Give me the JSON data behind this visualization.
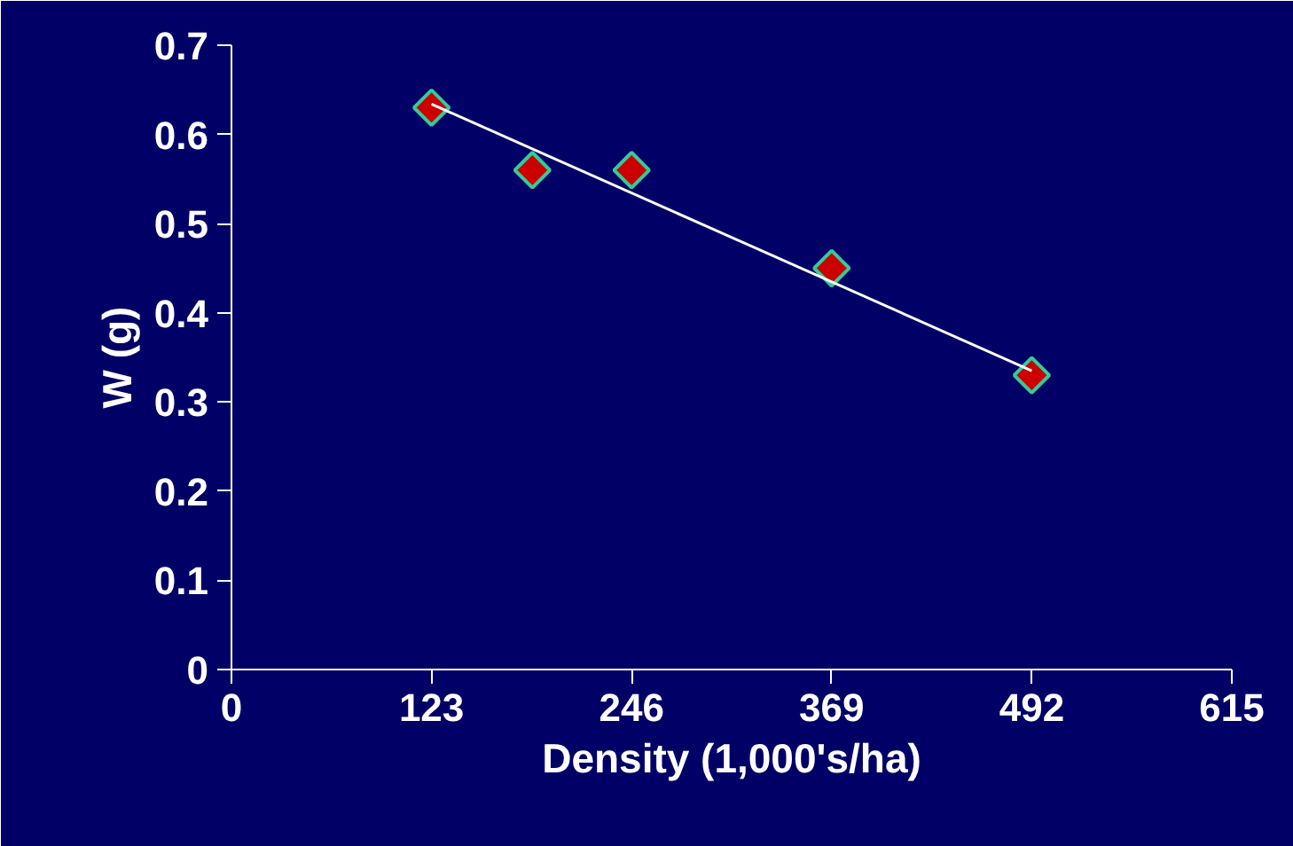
{
  "chart_data": {
    "type": "scatter",
    "xlabel": "Density (1,000's/ha)",
    "ylabel": "W (g)",
    "xlim": [
      0,
      615
    ],
    "ylim": [
      0,
      0.7
    ],
    "xticks": [
      0,
      123,
      246,
      369,
      492,
      615
    ],
    "yticks": [
      0,
      0.1,
      0.2,
      0.3,
      0.4,
      0.5,
      0.6,
      0.7
    ],
    "marker": "diamond",
    "series": [
      {
        "color": "#cc0000",
        "x": [
          123,
          185,
          246,
          369,
          492
        ],
        "values": [
          0.63,
          0.56,
          0.56,
          0.45,
          0.33
        ]
      },
      {
        "type": "line",
        "color": "#ffffff",
        "marker": "none",
        "line_style": "solid",
        "x": [
          123,
          492
        ],
        "values": [
          0.634,
          0.335
        ]
      }
    ]
  }
}
